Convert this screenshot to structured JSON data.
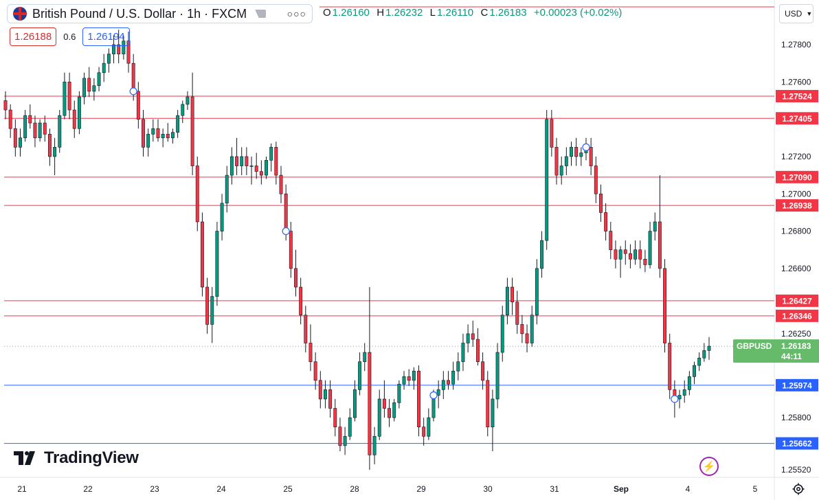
{
  "header": {
    "symbol_title": "British Pound / U.S. Dollar · 1h · FXCM",
    "more_label": "○○○"
  },
  "ohlc": {
    "o_label": "O",
    "o": "1.26160",
    "h_label": "H",
    "h": "1.26232",
    "l_label": "L",
    "l": "1.26110",
    "c_label": "C",
    "c": "1.26183",
    "change": "+0.00023 (+0.02%)"
  },
  "quote": {
    "bid": "1.26188",
    "spread": "0.6",
    "ask": "1.26194"
  },
  "currency": {
    "label": "USD"
  },
  "logo": {
    "text": "TradingView"
  },
  "colors": {
    "up": "#089981",
    "down": "#f23645",
    "resistance": "#f23645",
    "support": "#2962ff",
    "last_price": "#66bb6a",
    "flash": "#9c27b0"
  },
  "icons": {
    "flag": "gbp-usd-flag-icon",
    "more": "more-dots-icon",
    "flash": "lightning-icon",
    "settings": "gear-icon",
    "logo": "tradingview-logo-icon"
  },
  "chart_data": {
    "type": "candlestick",
    "price_axis": {
      "min": 1.2548,
      "max": 1.2801,
      "ticks": [
        "1.27800",
        "1.27600",
        "1.27200",
        "1.27000",
        "1.26800",
        "1.26600",
        "1.26250",
        "1.25800",
        "1.25520"
      ]
    },
    "time_axis": {
      "ticks": [
        "21",
        "22",
        "23",
        "24",
        "25",
        "28",
        "29",
        "30",
        "31",
        "Sep",
        "4",
        "5"
      ],
      "bold_ticks": [
        "Sep"
      ]
    },
    "resistance_levels": [
      "1.27524",
      "1.27405",
      "1.27090",
      "1.26938",
      "1.26427",
      "1.26346"
    ],
    "support_levels": [
      "1.25974",
      "1.25662"
    ],
    "last_price": {
      "symbol": "GBPUSD",
      "price": "1.26183",
      "countdown": "44:11"
    },
    "candles": [
      [
        1.275,
        1.2755,
        1.274,
        1.2745
      ],
      [
        1.2745,
        1.2748,
        1.273,
        1.2735
      ],
      [
        1.2735,
        1.274,
        1.272,
        1.2725
      ],
      [
        1.2725,
        1.2735,
        1.272,
        1.273
      ],
      [
        1.273,
        1.2745,
        1.2728,
        1.2742
      ],
      [
        1.2742,
        1.2748,
        1.2735,
        1.2738
      ],
      [
        1.2738,
        1.2742,
        1.2725,
        1.273
      ],
      [
        1.273,
        1.274,
        1.2728,
        1.2738
      ],
      [
        1.2738,
        1.2742,
        1.2728,
        1.2732
      ],
      [
        1.2732,
        1.2735,
        1.2715,
        1.272
      ],
      [
        1.272,
        1.273,
        1.271,
        1.2725
      ],
      [
        1.2725,
        1.2745,
        1.2722,
        1.2742
      ],
      [
        1.2742,
        1.2765,
        1.274,
        1.276
      ],
      [
        1.276,
        1.2765,
        1.274,
        1.2745
      ],
      [
        1.2745,
        1.275,
        1.273,
        1.2735
      ],
      [
        1.2735,
        1.2755,
        1.2732,
        1.2752
      ],
      [
        1.2752,
        1.2765,
        1.2748,
        1.2762
      ],
      [
        1.2762,
        1.2768,
        1.2752,
        1.2755
      ],
      [
        1.2755,
        1.2762,
        1.275,
        1.2758
      ],
      [
        1.2758,
        1.2768,
        1.2755,
        1.2765
      ],
      [
        1.2765,
        1.2775,
        1.276,
        1.277
      ],
      [
        1.277,
        1.2778,
        1.2765,
        1.2775
      ],
      [
        1.2775,
        1.2785,
        1.277,
        1.278
      ],
      [
        1.278,
        1.2788,
        1.277,
        1.2775
      ],
      [
        1.2775,
        1.2785,
        1.2772,
        1.2782
      ],
      [
        1.2782,
        1.2787,
        1.2765,
        1.277
      ],
      [
        1.277,
        1.2775,
        1.275,
        1.2755
      ],
      [
        1.2755,
        1.276,
        1.2735,
        1.274
      ],
      [
        1.274,
        1.2745,
        1.272,
        1.2725
      ],
      [
        1.2725,
        1.2735,
        1.272,
        1.2732
      ],
      [
        1.2732,
        1.274,
        1.2728,
        1.2735
      ],
      [
        1.2735,
        1.274,
        1.2728,
        1.273
      ],
      [
        1.273,
        1.2735,
        1.2725,
        1.2732
      ],
      [
        1.2732,
        1.2738,
        1.2728,
        1.273
      ],
      [
        1.273,
        1.2735,
        1.2727,
        1.2733
      ],
      [
        1.2733,
        1.2745,
        1.273,
        1.2742
      ],
      [
        1.2742,
        1.275,
        1.2738,
        1.2748
      ],
      [
        1.2748,
        1.2755,
        1.2745,
        1.2752
      ],
      [
        1.2752,
        1.2765,
        1.271,
        1.2715
      ],
      [
        1.2715,
        1.272,
        1.268,
        1.2685
      ],
      [
        1.2685,
        1.269,
        1.2645,
        1.265
      ],
      [
        1.265,
        1.2655,
        1.2625,
        1.263
      ],
      [
        1.263,
        1.265,
        1.262,
        1.2645
      ],
      [
        1.2645,
        1.2685,
        1.264,
        1.268
      ],
      [
        1.268,
        1.27,
        1.2675,
        1.2695
      ],
      [
        1.2695,
        1.2715,
        1.269,
        1.271
      ],
      [
        1.271,
        1.2725,
        1.2705,
        1.272
      ],
      [
        1.272,
        1.273,
        1.271,
        1.2715
      ],
      [
        1.2715,
        1.2725,
        1.271,
        1.272
      ],
      [
        1.272,
        1.2725,
        1.271,
        1.2715
      ],
      [
        1.2715,
        1.272,
        1.2705,
        1.2715
      ],
      [
        1.2715,
        1.2722,
        1.2708,
        1.2712
      ],
      [
        1.2712,
        1.2718,
        1.2705,
        1.271
      ],
      [
        1.271,
        1.272,
        1.2708,
        1.2718
      ],
      [
        1.2718,
        1.2727,
        1.2712,
        1.2725
      ],
      [
        1.2725,
        1.2728,
        1.2705,
        1.271
      ],
      [
        1.271,
        1.2715,
        1.2695,
        1.27
      ],
      [
        1.27,
        1.2705,
        1.2675,
        1.268
      ],
      [
        1.268,
        1.2685,
        1.2655,
        1.266
      ],
      [
        1.266,
        1.267,
        1.2645,
        1.265
      ],
      [
        1.265,
        1.2655,
        1.263,
        1.2635
      ],
      [
        1.2635,
        1.264,
        1.2615,
        1.262
      ],
      [
        1.262,
        1.263,
        1.2605,
        1.261
      ],
      [
        1.261,
        1.2615,
        1.2595,
        1.26
      ],
      [
        1.26,
        1.2605,
        1.2585,
        1.259
      ],
      [
        1.259,
        1.26,
        1.2585,
        1.2595
      ],
      [
        1.2595,
        1.26,
        1.258,
        1.2585
      ],
      [
        1.2585,
        1.259,
        1.257,
        1.2575
      ],
      [
        1.2575,
        1.258,
        1.2562,
        1.2565
      ],
      [
        1.2565,
        1.2575,
        1.256,
        1.257
      ],
      [
        1.257,
        1.2585,
        1.2568,
        1.258
      ],
      [
        1.258,
        1.26,
        1.2578,
        1.2595
      ],
      [
        1.2595,
        1.2615,
        1.2592,
        1.261
      ],
      [
        1.261,
        1.262,
        1.2605,
        1.2615
      ],
      [
        1.2615,
        1.265,
        1.2552,
        1.256
      ],
      [
        1.256,
        1.2575,
        1.2555,
        1.257
      ],
      [
        1.257,
        1.2595,
        1.2568,
        1.259
      ],
      [
        1.259,
        1.26,
        1.258,
        1.2585
      ],
      [
        1.2585,
        1.259,
        1.2575,
        1.258
      ],
      [
        1.258,
        1.259,
        1.2578,
        1.2588
      ],
      [
        1.2588,
        1.26,
        1.2585,
        1.2598
      ],
      [
        1.2598,
        1.2605,
        1.2595,
        1.2602
      ],
      [
        1.2602,
        1.2606,
        1.2597,
        1.26
      ],
      [
        1.26,
        1.2607,
        1.2595,
        1.2605
      ],
      [
        1.2605,
        1.2608,
        1.257,
        1.2575
      ],
      [
        1.2575,
        1.258,
        1.2565,
        1.257
      ],
      [
        1.257,
        1.2585,
        1.2568,
        1.258
      ],
      [
        1.258,
        1.2595,
        1.2578,
        1.2592
      ],
      [
        1.2592,
        1.26,
        1.2585,
        1.2595
      ],
      [
        1.2595,
        1.2605,
        1.259,
        1.26
      ],
      [
        1.26,
        1.2605,
        1.2595,
        1.2598
      ],
      [
        1.2598,
        1.261,
        1.2595,
        1.2605
      ],
      [
        1.2605,
        1.2615,
        1.26,
        1.261
      ],
      [
        1.261,
        1.2625,
        1.2605,
        1.262
      ],
      [
        1.262,
        1.263,
        1.2615,
        1.2625
      ],
      [
        1.2625,
        1.2632,
        1.2618,
        1.2622
      ],
      [
        1.2622,
        1.2628,
        1.2608,
        1.261
      ],
      [
        1.261,
        1.2615,
        1.2595,
        1.26
      ],
      [
        1.26,
        1.2605,
        1.257,
        1.2575
      ],
      [
        1.2575,
        1.2595,
        1.2562,
        1.259
      ],
      [
        1.259,
        1.262,
        1.2585,
        1.2615
      ],
      [
        1.2615,
        1.264,
        1.261,
        1.2635
      ],
      [
        1.2635,
        1.2655,
        1.263,
        1.265
      ],
      [
        1.265,
        1.2655,
        1.2635,
        1.2642
      ],
      [
        1.2642,
        1.2648,
        1.2625,
        1.263
      ],
      [
        1.263,
        1.2635,
        1.262,
        1.2625
      ],
      [
        1.2625,
        1.263,
        1.2615,
        1.262
      ],
      [
        1.262,
        1.264,
        1.2618,
        1.2635
      ],
      [
        1.2635,
        1.2665,
        1.263,
        1.266
      ],
      [
        1.266,
        1.268,
        1.2655,
        1.2675
      ],
      [
        1.2675,
        1.2745,
        1.267,
        1.274
      ],
      [
        1.274,
        1.2745,
        1.272,
        1.2725
      ],
      [
        1.2725,
        1.273,
        1.2705,
        1.271
      ],
      [
        1.271,
        1.272,
        1.2705,
        1.2715
      ],
      [
        1.2715,
        1.2725,
        1.271,
        1.272
      ],
      [
        1.272,
        1.2728,
        1.2715,
        1.2725
      ],
      [
        1.2725,
        1.273,
        1.2715,
        1.272
      ],
      [
        1.272,
        1.2725,
        1.2715,
        1.2722
      ],
      [
        1.2722,
        1.273,
        1.2718,
        1.2725
      ],
      [
        1.2725,
        1.273,
        1.271,
        1.2715
      ],
      [
        1.2715,
        1.272,
        1.2695,
        1.27
      ],
      [
        1.27,
        1.2705,
        1.2685,
        1.269
      ],
      [
        1.269,
        1.2695,
        1.2675,
        1.268
      ],
      [
        1.268,
        1.2685,
        1.2665,
        1.267
      ],
      [
        1.267,
        1.2675,
        1.266,
        1.2665
      ],
      [
        1.2665,
        1.2672,
        1.2655,
        1.267
      ],
      [
        1.267,
        1.2675,
        1.2662,
        1.2668
      ],
      [
        1.2668,
        1.2673,
        1.266,
        1.2665
      ],
      [
        1.2665,
        1.2675,
        1.2662,
        1.267
      ],
      [
        1.267,
        1.2675,
        1.266,
        1.2665
      ],
      [
        1.2665,
        1.267,
        1.2658,
        1.2662
      ],
      [
        1.2662,
        1.2685,
        1.266,
        1.268
      ],
      [
        1.268,
        1.269,
        1.2675,
        1.2685
      ],
      [
        1.2685,
        1.271,
        1.2655,
        1.266
      ],
      [
        1.266,
        1.2665,
        1.2615,
        1.262
      ],
      [
        1.262,
        1.2625,
        1.259,
        1.2595
      ],
      [
        1.2595,
        1.26,
        1.258,
        1.259
      ],
      [
        1.259,
        1.2595,
        1.2585,
        1.2592
      ],
      [
        1.2592,
        1.26,
        1.2588,
        1.2595
      ],
      [
        1.2595,
        1.2605,
        1.2592,
        1.2602
      ],
      [
        1.2602,
        1.261,
        1.2598,
        1.2608
      ],
      [
        1.2608,
        1.2615,
        1.2605,
        1.2612
      ],
      [
        1.2612,
        1.262,
        1.261,
        1.2616
      ],
      [
        1.2616,
        1.26232,
        1.2611,
        1.26183
      ]
    ],
    "markers": [
      26,
      57,
      87,
      118,
      136
    ]
  }
}
